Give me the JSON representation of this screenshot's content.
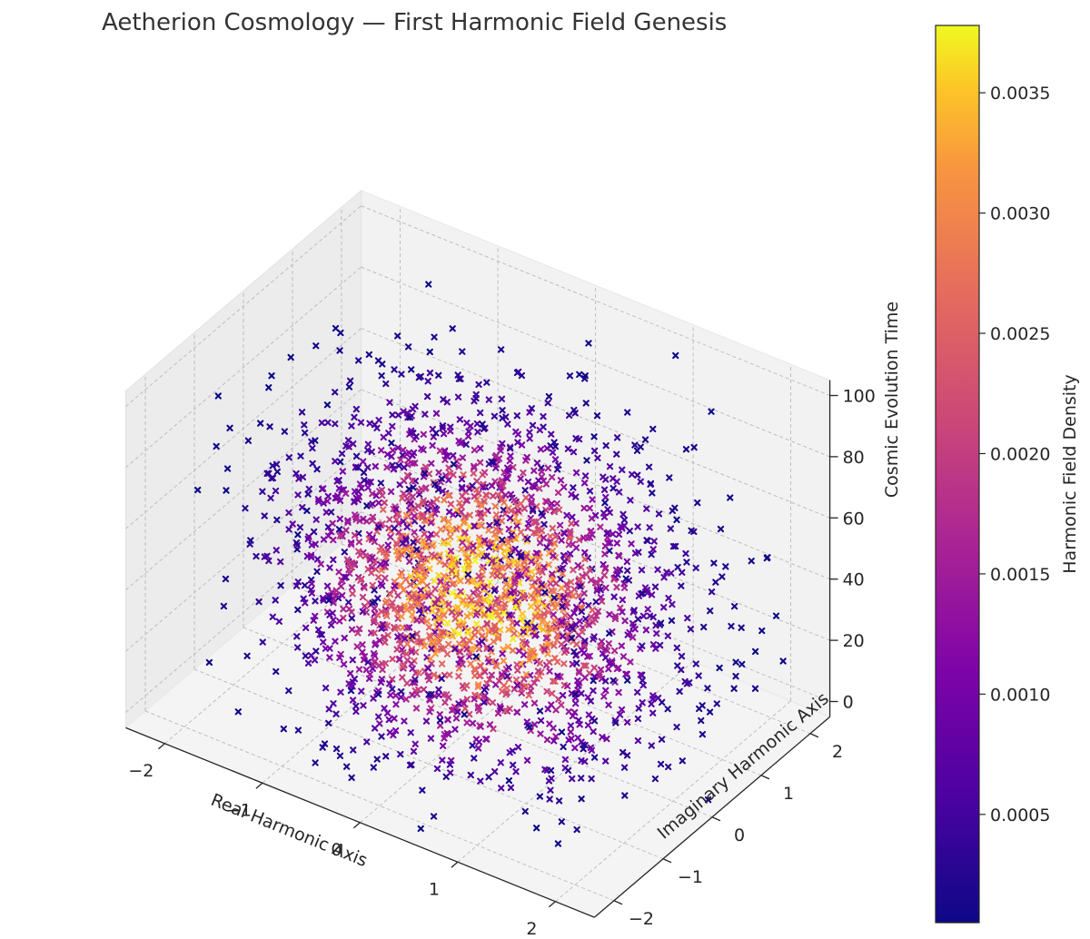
{
  "chart_data": {
    "type": "scatter",
    "projection": "3d",
    "title": "Aetherion Cosmology — First Harmonic Field Genesis",
    "xlabel": "Real Harmonic Axis",
    "ylabel": "Imaginary Harmonic Axis",
    "zlabel": "Cosmic Evolution Time",
    "xlim": [
      -2.4,
      2.4
    ],
    "ylim": [
      -2.4,
      2.4
    ],
    "zlim": [
      -5,
      105
    ],
    "xticks": [
      -2,
      -1,
      0,
      1,
      2
    ],
    "yticks": [
      -2,
      -1,
      0,
      1,
      2
    ],
    "zticks": [
      0,
      20,
      40,
      60,
      80,
      100
    ],
    "xtick_labels": [
      "−2",
      "−1",
      "0",
      "1",
      "2"
    ],
    "ytick_labels": [
      "−2",
      "−1",
      "0",
      "1",
      "2"
    ],
    "ztick_labels": [
      "0",
      "20",
      "40",
      "60",
      "80",
      "100"
    ],
    "marker": "x",
    "colormap": "plasma",
    "colorbar": {
      "label": "Harmonic Field Density",
      "range": [
        5e-05,
        0.00378
      ],
      "ticks": [
        0.0005,
        0.001,
        0.0015,
        0.002,
        0.0025,
        0.003,
        0.0035
      ],
      "tick_labels": [
        "0.0005",
        "0.0010",
        "0.0015",
        "0.0020",
        "0.0025",
        "0.0030",
        "0.0035"
      ]
    },
    "point_cloud": {
      "count": 2600,
      "distribution": "gaussian",
      "center": [
        0,
        0,
        38
      ],
      "spread": [
        0.95,
        0.95,
        28
      ],
      "density_peak": 0.0037
    },
    "grid": true
  }
}
